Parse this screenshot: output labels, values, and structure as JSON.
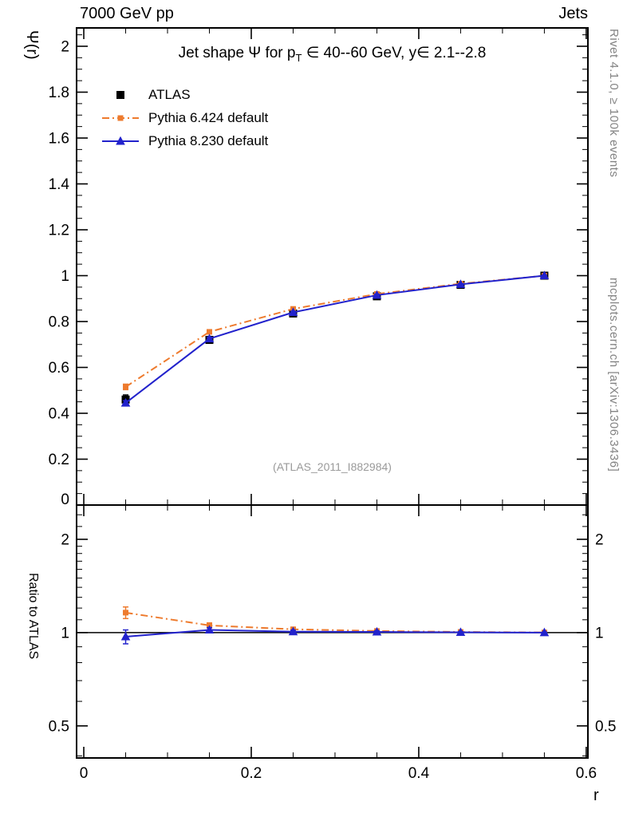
{
  "header": {
    "left": "7000 GeV pp",
    "right": "Jets"
  },
  "side_notes": {
    "top": "Rivet 4.1.0, ≥ 100k events",
    "bottom": "mcplots.cern.ch [arXiv:1306.3436]"
  },
  "watermark": "(ATLAS_2011_I882984)",
  "chart_data": {
    "type": "line",
    "title_parts": {
      "pre": "Jet shape Ψ for p",
      "sub": "T",
      "post": " ∈ 40--60 GeV, y∈ 2.1--2.8"
    },
    "x_label": "r",
    "xlim": [
      -0.0086,
      0.602
    ],
    "xticks": [
      0,
      0.2,
      0.4,
      0.6
    ],
    "xtick_labels": [
      "0",
      "0.2",
      "0.4",
      "0.6"
    ],
    "x_minor_step": 0.05,
    "main_panel": {
      "y_label": "Ψ(r)",
      "scale": "linear",
      "ylim": [
        0,
        2.08
      ],
      "yticks": [
        0,
        0.2,
        0.4,
        0.6,
        0.8,
        1.0,
        1.2,
        1.4,
        1.6,
        1.8,
        2.0
      ],
      "ytick_labels": [
        "0",
        "0.2",
        "0.4",
        "0.6",
        "0.8",
        "1",
        "1.2",
        "1.4",
        "1.6",
        "1.8",
        "2"
      ],
      "y_minor_step": 0.05
    },
    "ratio_panel": {
      "y_label": "Ratio to ATLAS",
      "scale": "log",
      "ylim": [
        0.394,
        2.58
      ],
      "yticks": [
        0.5,
        1,
        2
      ],
      "ytick_labels": [
        "0.5",
        "1",
        "2"
      ],
      "y_minor_ticks": [
        0.4,
        0.6,
        0.7,
        0.8,
        0.9,
        1.1,
        1.2,
        1.3,
        1.4,
        1.5,
        1.6,
        1.7,
        1.8,
        1.9,
        2.2,
        2.4
      ],
      "ref_line": 1
    },
    "x": [
      0.05,
      0.15,
      0.25,
      0.35,
      0.45,
      0.55
    ],
    "series": [
      {
        "name": "ATLAS",
        "color": "#000000",
        "marker": "square",
        "marker_size": 10,
        "line": "none",
        "values": [
          0.46,
          0.72,
          0.835,
          0.91,
          0.96,
          1.0
        ],
        "errors": [
          0.02,
          0.015,
          0.01,
          0.007,
          0.005,
          0.003
        ],
        "ratio": null,
        "ratio_errors": null
      },
      {
        "name": "Pythia 6.424 default",
        "color": "#ee7b2e",
        "marker": "square",
        "marker_size": 7,
        "line": "dashdot",
        "values": [
          0.515,
          0.755,
          0.855,
          0.92,
          0.965,
          1.0
        ],
        "errors": [
          0.012,
          0.008,
          0.006,
          0.004,
          0.003,
          0.002
        ],
        "ratio": [
          1.16,
          1.055,
          1.025,
          1.012,
          1.005,
          1.001
        ],
        "ratio_errors": [
          0.05,
          0.02,
          0.012,
          0.009,
          0.006,
          0.004
        ]
      },
      {
        "name": "Pythia 8.230 default",
        "color": "#2222cc",
        "marker": "triangle",
        "marker_size": 10,
        "line": "solid",
        "values": [
          0.445,
          0.725,
          0.84,
          0.915,
          0.962,
          1.0
        ],
        "errors": [
          0.01,
          0.007,
          0.005,
          0.004,
          0.003,
          0.002
        ],
        "ratio": [
          0.97,
          1.02,
          1.007,
          1.005,
          1.002,
          1.0
        ],
        "ratio_errors": [
          0.05,
          0.018,
          0.012,
          0.008,
          0.005,
          0.003
        ]
      }
    ]
  }
}
